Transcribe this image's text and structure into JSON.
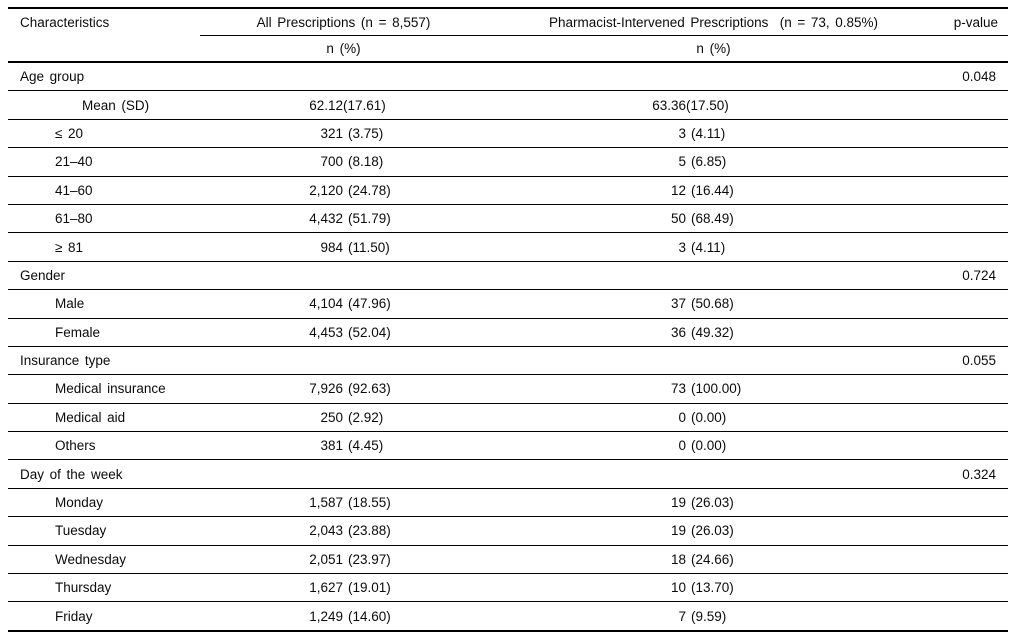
{
  "table": {
    "header": {
      "characteristics": "Characteristics",
      "all_prescriptions": "All Prescriptions (n = 8,557)",
      "intervened_prescriptions": "Pharmacist-Intervened Prescriptions  (n = 73, 0.85%)",
      "p_value": "p-value",
      "n_pct": "n (%)"
    },
    "rows": [
      {
        "kind": "category",
        "label": "Age group",
        "p": "0.048"
      },
      {
        "kind": "mean",
        "label": "Mean (SD)",
        "all_n": "62.12",
        "all_pct": "(17.61)",
        "int_n": "63.36",
        "int_pct": "(17.50)"
      },
      {
        "kind": "sub",
        "label": "≤ 20",
        "all_n": "321",
        "all_pct": "(3.75)",
        "int_n": "3",
        "int_pct": "(4.11)"
      },
      {
        "kind": "sub",
        "label": "21–40",
        "all_n": "700",
        "all_pct": "(8.18)",
        "int_n": "5",
        "int_pct": "(6.85)"
      },
      {
        "kind": "sub",
        "label": "41–60",
        "all_n": "2,120",
        "all_pct": "(24.78)",
        "int_n": "12",
        "int_pct": "(16.44)"
      },
      {
        "kind": "sub",
        "label": "61–80",
        "all_n": "4,432",
        "all_pct": "(51.79)",
        "int_n": "50",
        "int_pct": "(68.49)"
      },
      {
        "kind": "sub",
        "label": "≥ 81",
        "all_n": "984",
        "all_pct": "(11.50)",
        "int_n": "3",
        "int_pct": "(4.11)"
      },
      {
        "kind": "category",
        "label": "Gender",
        "p": "0.724"
      },
      {
        "kind": "sub",
        "label": "Male",
        "all_n": "4,104",
        "all_pct": "(47.96)",
        "int_n": "37",
        "int_pct": "(50.68)"
      },
      {
        "kind": "sub",
        "label": "Female",
        "all_n": "4,453",
        "all_pct": "(52.04)",
        "int_n": "36",
        "int_pct": "(49.32)"
      },
      {
        "kind": "category",
        "label": "Insurance type",
        "p": "0.055"
      },
      {
        "kind": "sub",
        "label": "Medical insurance",
        "all_n": "7,926",
        "all_pct": "(92.63)",
        "int_n": "73",
        "int_pct": "(100.00)"
      },
      {
        "kind": "sub",
        "label": "Medical aid",
        "all_n": "250",
        "all_pct": "(2.92)",
        "int_n": "0",
        "int_pct": "(0.00)"
      },
      {
        "kind": "sub",
        "label": "Others",
        "all_n": "381",
        "all_pct": "(4.45)",
        "int_n": "0",
        "int_pct": "(0.00)"
      },
      {
        "kind": "category",
        "label": "Day of the week",
        "p": "0.324"
      },
      {
        "kind": "sub",
        "label": "Monday",
        "all_n": "1,587",
        "all_pct": "(18.55)",
        "int_n": "19",
        "int_pct": "(26.03)"
      },
      {
        "kind": "sub",
        "label": "Tuesday",
        "all_n": "2,043",
        "all_pct": "(23.88)",
        "int_n": "19",
        "int_pct": "(26.03)"
      },
      {
        "kind": "sub",
        "label": "Wednesday",
        "all_n": "2,051",
        "all_pct": "(23.97)",
        "int_n": "18",
        "int_pct": "(24.66)"
      },
      {
        "kind": "sub",
        "label": "Thursday",
        "all_n": "1,627",
        "all_pct": "(19.01)",
        "int_n": "10",
        "int_pct": "(13.70)"
      },
      {
        "kind": "sub",
        "label": "Friday",
        "all_n": "1,249",
        "all_pct": "(14.60)",
        "int_n": "7",
        "int_pct": "(9.59)"
      }
    ]
  }
}
